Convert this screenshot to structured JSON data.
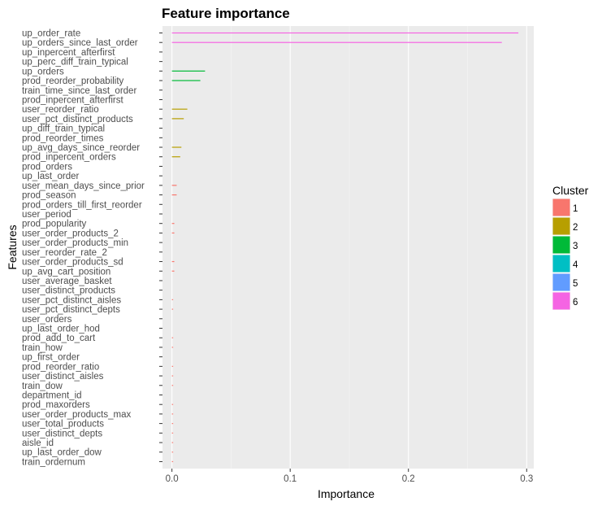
{
  "chart_data": {
    "type": "bar",
    "orientation": "horizontal",
    "title": "Feature importance",
    "xlabel": "Importance",
    "ylabel": "Features",
    "xlim": [
      -0.008,
      0.306
    ],
    "x_ticks": [
      0.0,
      0.1,
      0.2,
      0.3
    ],
    "x_tick_labels": [
      "0.0",
      "0.1",
      "0.2",
      "0.3"
    ],
    "grid": true,
    "legend": {
      "title": "Cluster",
      "placement": "right",
      "entries": [
        {
          "label": "1",
          "color": "#F8766D"
        },
        {
          "label": "2",
          "color": "#B79F00"
        },
        {
          "label": "3",
          "color": "#00BA38"
        },
        {
          "label": "4",
          "color": "#00BFC4"
        },
        {
          "label": "5",
          "color": "#619CFF"
        },
        {
          "label": "6",
          "color": "#F564E3"
        }
      ]
    },
    "features": [
      {
        "name": "up_order_rate",
        "value": 0.293,
        "cluster": "6"
      },
      {
        "name": "up_orders_since_last_order",
        "value": 0.279,
        "cluster": "6"
      },
      {
        "name": "up_inpercent_afterfirst",
        "value": 0.0,
        "cluster": "1"
      },
      {
        "name": "up_perc_diff_train_typical",
        "value": 0.0,
        "cluster": "1"
      },
      {
        "name": "up_orders",
        "value": 0.028,
        "cluster": "3"
      },
      {
        "name": "prod_reorder_probability",
        "value": 0.024,
        "cluster": "3"
      },
      {
        "name": "train_time_since_last_order",
        "value": 0.0,
        "cluster": "1"
      },
      {
        "name": "prod_inpercent_afterfirst",
        "value": 0.0,
        "cluster": "1"
      },
      {
        "name": "user_reorder_ratio",
        "value": 0.013,
        "cluster": "2"
      },
      {
        "name": "user_pct_distinct_products",
        "value": 0.01,
        "cluster": "2"
      },
      {
        "name": "up_diff_train_typical",
        "value": 0.0,
        "cluster": "1"
      },
      {
        "name": "prod_reorder_times",
        "value": 0.0,
        "cluster": "1"
      },
      {
        "name": "up_avg_days_since_reorder",
        "value": 0.008,
        "cluster": "2"
      },
      {
        "name": "prod_inpercent_orders",
        "value": 0.007,
        "cluster": "2"
      },
      {
        "name": "prod_orders",
        "value": 0.0,
        "cluster": "1"
      },
      {
        "name": "up_last_order",
        "value": 0.0,
        "cluster": "1"
      },
      {
        "name": "user_mean_days_since_prior",
        "value": 0.004,
        "cluster": "1"
      },
      {
        "name": "prod_season",
        "value": 0.004,
        "cluster": "1"
      },
      {
        "name": "prod_orders_till_first_reorder",
        "value": 0.0,
        "cluster": "1"
      },
      {
        "name": "user_period",
        "value": 0.0,
        "cluster": "1"
      },
      {
        "name": "prod_popularity",
        "value": 0.002,
        "cluster": "1"
      },
      {
        "name": "user_order_products_2",
        "value": 0.002,
        "cluster": "1"
      },
      {
        "name": "user_order_products_min",
        "value": 0.0,
        "cluster": "1"
      },
      {
        "name": "user_reorder_rate_2",
        "value": 0.0,
        "cluster": "1"
      },
      {
        "name": "user_order_products_sd",
        "value": 0.002,
        "cluster": "1"
      },
      {
        "name": "up_avg_cart_position",
        "value": 0.002,
        "cluster": "1"
      },
      {
        "name": "user_average_basket",
        "value": 0.0,
        "cluster": "1"
      },
      {
        "name": "user_distinct_products",
        "value": 0.0,
        "cluster": "1"
      },
      {
        "name": "user_pct_distinct_aisles",
        "value": 0.001,
        "cluster": "1"
      },
      {
        "name": "user_pct_distinct_depts",
        "value": 0.001,
        "cluster": "1"
      },
      {
        "name": "user_orders",
        "value": 0.0,
        "cluster": "1"
      },
      {
        "name": "up_last_order_hod",
        "value": 0.0,
        "cluster": "1"
      },
      {
        "name": "prod_add_to_cart",
        "value": 0.001,
        "cluster": "1"
      },
      {
        "name": "train_how",
        "value": 0.001,
        "cluster": "1"
      },
      {
        "name": "up_first_order",
        "value": 0.0,
        "cluster": "1"
      },
      {
        "name": "prod_reorder_ratio",
        "value": 0.001,
        "cluster": "1"
      },
      {
        "name": "user_distinct_aisles",
        "value": 0.001,
        "cluster": "1"
      },
      {
        "name": "train_dow",
        "value": 0.001,
        "cluster": "1"
      },
      {
        "name": "department_id",
        "value": 0.0,
        "cluster": "1"
      },
      {
        "name": "prod_maxorders",
        "value": 0.001,
        "cluster": "1"
      },
      {
        "name": "user_order_products_max",
        "value": 0.001,
        "cluster": "1"
      },
      {
        "name": "user_total_products",
        "value": 0.001,
        "cluster": "1"
      },
      {
        "name": "user_distinct_depts",
        "value": 0.001,
        "cluster": "1"
      },
      {
        "name": "aisle_id",
        "value": 0.001,
        "cluster": "1"
      },
      {
        "name": "up_last_order_dow",
        "value": 0.001,
        "cluster": "1"
      },
      {
        "name": "train_ordernum",
        "value": 0.001,
        "cluster": "1"
      }
    ]
  }
}
